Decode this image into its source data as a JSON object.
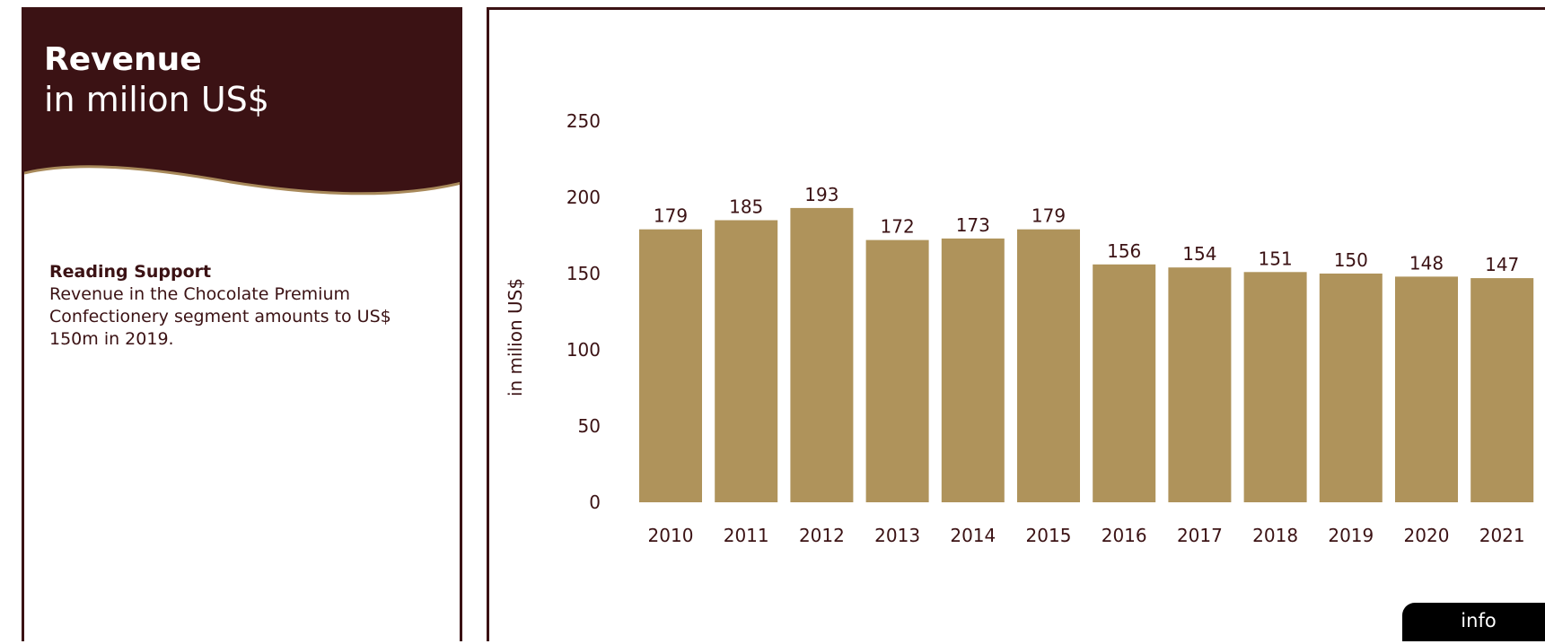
{
  "header": {
    "title": "Revenue",
    "subtitle": "in milion US$"
  },
  "reading_support": {
    "title": "Reading Support",
    "text": "Revenue in the Chocolate Premium Confectionery segment amounts to US$ 150m in 2019."
  },
  "info_button": {
    "label": "info"
  },
  "colors": {
    "dark": "#3b1214",
    "bar": "#af935b",
    "wave_line": "#a8895a",
    "info_bg": "#000000"
  },
  "chart_data": {
    "type": "bar",
    "categories": [
      "2010",
      "2011",
      "2012",
      "2013",
      "2014",
      "2015",
      "2016",
      "2017",
      "2018",
      "2019",
      "2020",
      "2021"
    ],
    "values": [
      179,
      185,
      193,
      172,
      173,
      179,
      156,
      154,
      151,
      150,
      148,
      147
    ],
    "ylabel": "in milion US$",
    "yticks": [
      0,
      50,
      100,
      150,
      200,
      250
    ],
    "ylim": [
      0,
      250
    ],
    "data_labels": true,
    "grid": false,
    "legend": "none"
  }
}
